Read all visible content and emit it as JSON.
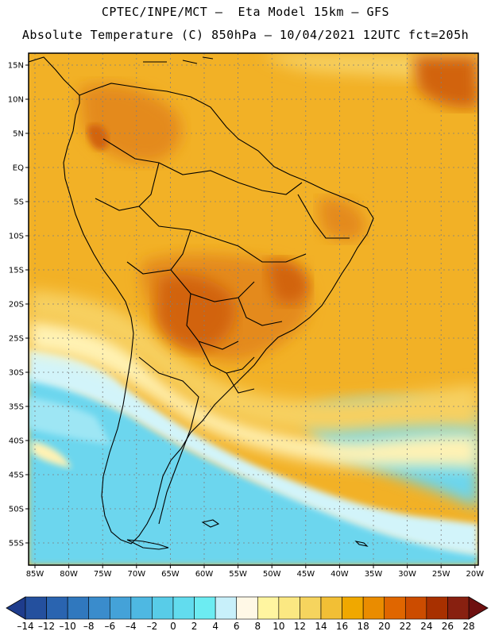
{
  "header": {
    "line1": "CPTEC/INPE/MCT –  Eta Model 15km – GFS",
    "line2": "Absolute Temperature (C) 850hPa – 10/04/2021 12UTC fct=205h"
  },
  "axes": {
    "lat_labels": [
      "15N",
      "10N",
      "5N",
      "EQ",
      "5S",
      "10S",
      "15S",
      "20S",
      "25S",
      "30S",
      "35S",
      "40S",
      "45S",
      "50S",
      "55S"
    ],
    "lon_labels": [
      "85W",
      "80W",
      "75W",
      "70W",
      "65W",
      "60W",
      "55W",
      "50W",
      "45W",
      "40W",
      "35W",
      "30W",
      "25W",
      "20W"
    ]
  },
  "colorbar": {
    "labels": [
      "–14",
      "–12",
      "–10",
      "–8",
      "–6",
      "–4",
      "–2",
      "0",
      "2",
      "4",
      "6",
      "8",
      "10",
      "12",
      "14",
      "16",
      "18",
      "20",
      "22",
      "24",
      "26",
      "28"
    ],
    "colors": [
      "#1e3c8c",
      "#24509e",
      "#2a64b0",
      "#3078be",
      "#3a8ccc",
      "#44a2d8",
      "#4eb8e2",
      "#58cce8",
      "#62dcee",
      "#6cecf2",
      "#c8f0fa",
      "#fff8e6",
      "#fff5a0",
      "#fbe882",
      "#f6d45e",
      "#f2bf35",
      "#f0a800",
      "#ea8c00",
      "#e06600",
      "#cc4c00",
      "#a83000",
      "#882010",
      "#6e1010"
    ]
  },
  "map_colors": {
    "ocean_cold": "#6cd6ee",
    "ocean_cool": "#9ee6f4",
    "cool_band": "#d2f4fa",
    "mild": "#fff2b4",
    "warm_yellow": "#f7d060",
    "orange": "#f2b126",
    "hot": "#e48a1a",
    "very_hot": "#d2640e"
  }
}
